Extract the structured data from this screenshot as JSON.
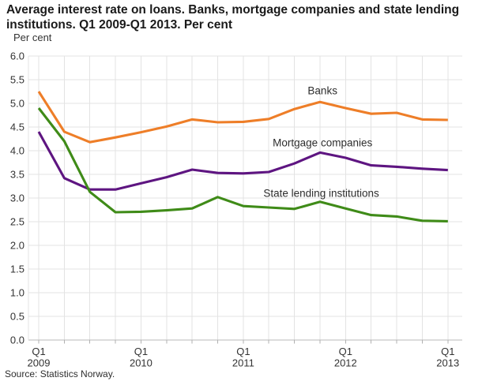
{
  "header": {
    "title_line1": "Average interest rate on loans. Banks, mortgage companies and state lending",
    "title_line2": "institutions. Q1 2009-Q1 2013. Per cent"
  },
  "footer": {
    "source": "Source: Statistics Norway."
  },
  "colors": {
    "grid": "#e3e3e3",
    "axis": "#b9b9b9",
    "tick": "#b0b0b0",
    "axis_text": "#333333",
    "label_text": "#2d2d2d",
    "banks": "#ee7e28",
    "mortgage": "#5e1581",
    "state": "#3f8b18"
  },
  "chart_data": {
    "type": "line",
    "title": "Average interest rate on loans. Banks, mortgage companies and state lending institutions. Q1 2009-Q1 2013. Per cent",
    "xlabel": "",
    "ylabel": "Per cent",
    "ylim": [
      0.0,
      6.0
    ],
    "ytick_step": 0.5,
    "grid": true,
    "legend_position": "inline-labels",
    "x": [
      "Q1 2009",
      "Q2 2009",
      "Q3 2009",
      "Q4 2009",
      "Q1 2010",
      "Q2 2010",
      "Q3 2010",
      "Q4 2010",
      "Q1 2011",
      "Q2 2011",
      "Q3 2011",
      "Q4 2011",
      "Q1 2012",
      "Q2 2012",
      "Q3 2012",
      "Q4 2012",
      "Q1 2013"
    ],
    "x_axis_labeled_ticks": [
      {
        "index": 0,
        "quarter": "Q1",
        "year": "2009"
      },
      {
        "index": 4,
        "quarter": "Q1",
        "year": "2010"
      },
      {
        "index": 8,
        "quarter": "Q1",
        "year": "2011"
      },
      {
        "index": 12,
        "quarter": "Q1",
        "year": "2012"
      },
      {
        "index": 16,
        "quarter": "Q1",
        "year": "2013"
      }
    ],
    "series": [
      {
        "name": "Banks",
        "color": "#ee7e28",
        "values": [
          5.25,
          4.4,
          4.18,
          4.28,
          4.39,
          4.51,
          4.66,
          4.6,
          4.61,
          4.67,
          4.88,
          5.03,
          4.9,
          4.78,
          4.8,
          4.66,
          4.65
        ],
        "label_anchor": {
          "x_index": 11.1,
          "value": 5.27
        }
      },
      {
        "name": "Mortgage companies",
        "color": "#5e1581",
        "values": [
          4.4,
          3.42,
          3.18,
          3.18,
          3.31,
          3.44,
          3.6,
          3.53,
          3.52,
          3.55,
          3.73,
          3.96,
          3.85,
          3.69,
          3.66,
          3.62,
          3.59
        ],
        "label_anchor": {
          "x_index": 11.1,
          "value": 4.17
        }
      },
      {
        "name": "State lending institutions",
        "color": "#3f8b18",
        "values": [
          4.9,
          4.2,
          3.13,
          2.7,
          2.71,
          2.74,
          2.78,
          3.02,
          2.83,
          2.8,
          2.77,
          2.92,
          2.78,
          2.64,
          2.61,
          2.52,
          2.51
        ],
        "label_anchor": {
          "x_index": 11.05,
          "value": 3.1
        }
      }
    ]
  }
}
